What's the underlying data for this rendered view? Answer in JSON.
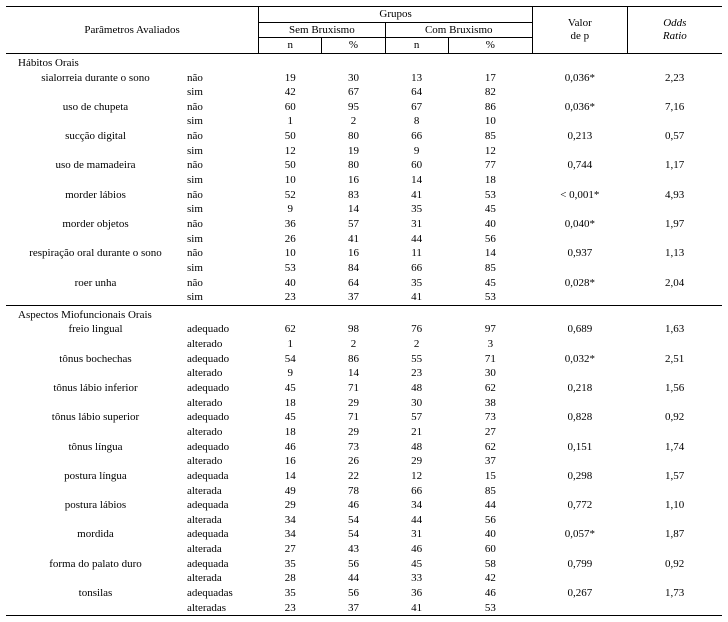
{
  "headers": {
    "parametros": "Parâmetros Avaliados",
    "grupos": "Grupos",
    "sem": "Sem Bruxismo",
    "com": "Com Bruxismo",
    "n": "n",
    "pct": "%",
    "valor_de_p_l1": "Valor",
    "valor_de_p_l2": "de p",
    "odds_l1": "Odds",
    "odds_l2": "Ratio"
  },
  "sections": [
    {
      "title": "Hábitos Orais",
      "rows": [
        {
          "param": "sialorreia durante o sono",
          "opt": "não",
          "n1": "19",
          "p1": "30",
          "n2": "13",
          "p2": "17",
          "pv": "0,036*",
          "or": "2,23"
        },
        {
          "param": "",
          "opt": "sim",
          "n1": "42",
          "p1": "67",
          "n2": "64",
          "p2": "82",
          "pv": "",
          "or": ""
        },
        {
          "param": "uso de chupeta",
          "opt": "não",
          "n1": "60",
          "p1": "95",
          "n2": "67",
          "p2": "86",
          "pv": "0,036*",
          "or": "7,16"
        },
        {
          "param": "",
          "opt": "sim",
          "n1": "1",
          "p1": "2",
          "n2": "8",
          "p2": "10",
          "pv": "",
          "or": ""
        },
        {
          "param": "sucção digital",
          "opt": "não",
          "n1": "50",
          "p1": "80",
          "n2": "66",
          "p2": "85",
          "pv": "0,213",
          "or": "0,57"
        },
        {
          "param": "",
          "opt": "sim",
          "n1": "12",
          "p1": "19",
          "n2": "9",
          "p2": "12",
          "pv": "",
          "or": ""
        },
        {
          "param": "uso de mamadeira",
          "opt": "não",
          "n1": "50",
          "p1": "80",
          "n2": "60",
          "p2": "77",
          "pv": "0,744",
          "or": "1,17"
        },
        {
          "param": "",
          "opt": "sim",
          "n1": "10",
          "p1": "16",
          "n2": "14",
          "p2": "18",
          "pv": "",
          "or": ""
        },
        {
          "param": "morder lábios",
          "opt": "não",
          "n1": "52",
          "p1": "83",
          "n2": "41",
          "p2": "53",
          "pv": "< 0,001*",
          "or": "4,93"
        },
        {
          "param": "",
          "opt": "sim",
          "n1": "9",
          "p1": "14",
          "n2": "35",
          "p2": "45",
          "pv": "",
          "or": ""
        },
        {
          "param": "morder objetos",
          "opt": "não",
          "n1": "36",
          "p1": "57",
          "n2": "31",
          "p2": "40",
          "pv": "0,040*",
          "or": "1,97"
        },
        {
          "param": "",
          "opt": "sim",
          "n1": "26",
          "p1": "41",
          "n2": "44",
          "p2": "56",
          "pv": "",
          "or": ""
        },
        {
          "param": "respiração oral durante o sono",
          "opt": "não",
          "n1": "10",
          "p1": "16",
          "n2": "11",
          "p2": "14",
          "pv": "0,937",
          "or": "1,13"
        },
        {
          "param": "",
          "opt": "sim",
          "n1": "53",
          "p1": "84",
          "n2": "66",
          "p2": "85",
          "pv": "",
          "or": ""
        },
        {
          "param": "roer unha",
          "opt": "não",
          "n1": "40",
          "p1": "64",
          "n2": "35",
          "p2": "45",
          "pv": "0,028*",
          "or": "2,04"
        },
        {
          "param": "",
          "opt": "sim",
          "n1": "23",
          "p1": "37",
          "n2": "41",
          "p2": "53",
          "pv": "",
          "or": ""
        }
      ]
    },
    {
      "title": "Aspectos Miofuncionais Orais",
      "rows": [
        {
          "param": "freio lingual",
          "opt": "adequado",
          "n1": "62",
          "p1": "98",
          "n2": "76",
          "p2": "97",
          "pv": "0,689",
          "or": "1,63"
        },
        {
          "param": "",
          "opt": "alterado",
          "n1": "1",
          "p1": "2",
          "n2": "2",
          "p2": "3",
          "pv": "",
          "or": ""
        },
        {
          "param": "tônus bochechas",
          "opt": "adequado",
          "n1": "54",
          "p1": "86",
          "n2": "55",
          "p2": "71",
          "pv": "0,032*",
          "or": "2,51"
        },
        {
          "param": "",
          "opt": "alterado",
          "n1": "9",
          "p1": "14",
          "n2": "23",
          "p2": "30",
          "pv": "",
          "or": ""
        },
        {
          "param": "tônus lábio inferior",
          "opt": "adequado",
          "n1": "45",
          "p1": "71",
          "n2": "48",
          "p2": "62",
          "pv": "0,218",
          "or": "1,56"
        },
        {
          "param": "",
          "opt": "alterado",
          "n1": "18",
          "p1": "29",
          "n2": "30",
          "p2": "38",
          "pv": "",
          "or": ""
        },
        {
          "param": "tônus lábio superior",
          "opt": "adequado",
          "n1": "45",
          "p1": "71",
          "n2": "57",
          "p2": "73",
          "pv": "0,828",
          "or": "0,92"
        },
        {
          "param": "",
          "opt": "alterado",
          "n1": "18",
          "p1": "29",
          "n2": "21",
          "p2": "27",
          "pv": "",
          "or": ""
        },
        {
          "param": "tônus língua",
          "opt": "adequado",
          "n1": "46",
          "p1": "73",
          "n2": "48",
          "p2": "62",
          "pv": "0,151",
          "or": "1,74"
        },
        {
          "param": "",
          "opt": "alterado",
          "n1": "16",
          "p1": "26",
          "n2": "29",
          "p2": "37",
          "pv": "",
          "or": ""
        },
        {
          "param": "postura língua",
          "opt": "adequada",
          "n1": "14",
          "p1": "22",
          "n2": "12",
          "p2": "15",
          "pv": "0,298",
          "or": "1,57"
        },
        {
          "param": "",
          "opt": "alterada",
          "n1": "49",
          "p1": "78",
          "n2": "66",
          "p2": "85",
          "pv": "",
          "or": ""
        },
        {
          "param": "postura lábios",
          "opt": "adequada",
          "n1": "29",
          "p1": "46",
          "n2": "34",
          "p2": "44",
          "pv": "0,772",
          "or": "1,10"
        },
        {
          "param": "",
          "opt": "alterada",
          "n1": "34",
          "p1": "54",
          "n2": "44",
          "p2": "56",
          "pv": "",
          "or": ""
        },
        {
          "param": "mordida",
          "opt": "adequada",
          "n1": "34",
          "p1": "54",
          "n2": "31",
          "p2": "40",
          "pv": "0,057*",
          "or": "1,87"
        },
        {
          "param": "",
          "opt": "alterada",
          "n1": "27",
          "p1": "43",
          "n2": "46",
          "p2": "60",
          "pv": "",
          "or": ""
        },
        {
          "param": "forma do palato duro",
          "opt": "adequada",
          "n1": "35",
          "p1": "56",
          "n2": "45",
          "p2": "58",
          "pv": "0,799",
          "or": "0,92"
        },
        {
          "param": "",
          "opt": "alterada",
          "n1": "28",
          "p1": "44",
          "n2": "33",
          "p2": "42",
          "pv": "",
          "or": ""
        },
        {
          "param": "tonsilas",
          "opt": "adequadas",
          "n1": "35",
          "p1": "56",
          "n2": "36",
          "p2": "46",
          "pv": "0,267",
          "or": "1,73"
        },
        {
          "param": "",
          "opt": "alteradas",
          "n1": "23",
          "p1": "37",
          "n2": "41",
          "p2": "53",
          "pv": "",
          "or": ""
        }
      ]
    }
  ]
}
